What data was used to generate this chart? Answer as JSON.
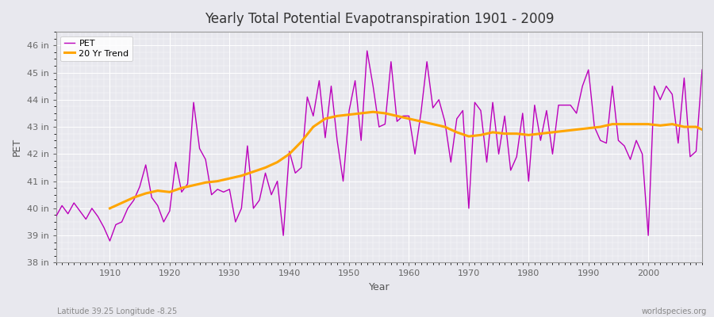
{
  "title": "Yearly Total Potential Evapotranspiration 1901 - 2009",
  "xlabel": "Year",
  "ylabel": "PET",
  "footnote_left": "Latitude 39.25 Longitude -8.25",
  "footnote_right": "worldspecies.org",
  "pet_color": "#BB00BB",
  "trend_color": "#FFA500",
  "bg_color": "#E8E8EE",
  "ylim": [
    38,
    46.5
  ],
  "xlim": [
    1901,
    2009
  ],
  "ytick_labels": [
    "38 in",
    "39 in",
    "40 in",
    "41 in",
    "42 in",
    "43 in",
    "44 in",
    "45 in",
    "46 in"
  ],
  "ytick_values": [
    38,
    39,
    40,
    41,
    42,
    43,
    44,
    45,
    46
  ],
  "years": [
    1901,
    1902,
    1903,
    1904,
    1905,
    1906,
    1907,
    1908,
    1909,
    1910,
    1911,
    1912,
    1913,
    1914,
    1915,
    1916,
    1917,
    1918,
    1919,
    1920,
    1921,
    1922,
    1923,
    1924,
    1925,
    1926,
    1927,
    1928,
    1929,
    1930,
    1931,
    1932,
    1933,
    1934,
    1935,
    1936,
    1937,
    1938,
    1939,
    1940,
    1941,
    1942,
    1943,
    1944,
    1945,
    1946,
    1947,
    1948,
    1949,
    1950,
    1951,
    1952,
    1953,
    1954,
    1955,
    1956,
    1957,
    1958,
    1959,
    1960,
    1961,
    1962,
    1963,
    1964,
    1965,
    1966,
    1967,
    1968,
    1969,
    1970,
    1971,
    1972,
    1973,
    1974,
    1975,
    1976,
    1977,
    1978,
    1979,
    1980,
    1981,
    1982,
    1983,
    1984,
    1985,
    1986,
    1987,
    1988,
    1989,
    1990,
    1991,
    1992,
    1993,
    1994,
    1995,
    1996,
    1997,
    1998,
    1999,
    2000,
    2001,
    2002,
    2003,
    2004,
    2005,
    2006,
    2007,
    2008,
    2009
  ],
  "pet_values": [
    39.7,
    40.1,
    39.8,
    40.2,
    39.9,
    39.6,
    40.0,
    39.7,
    39.3,
    38.8,
    39.4,
    39.5,
    40.0,
    40.3,
    40.8,
    41.6,
    40.4,
    40.1,
    39.5,
    39.9,
    41.7,
    40.6,
    40.9,
    43.9,
    42.2,
    41.8,
    40.5,
    40.7,
    40.6,
    40.7,
    39.5,
    40.0,
    42.3,
    40.0,
    40.3,
    41.3,
    40.5,
    41.0,
    39.0,
    42.1,
    41.3,
    41.5,
    44.1,
    43.4,
    44.7,
    42.6,
    44.5,
    42.5,
    41.0,
    43.6,
    44.7,
    42.5,
    45.8,
    44.5,
    43.0,
    43.1,
    45.4,
    43.2,
    43.4,
    43.4,
    42.0,
    43.5,
    45.4,
    43.7,
    44.0,
    43.2,
    41.7,
    43.3,
    43.6,
    40.0,
    43.9,
    43.6,
    41.7,
    43.9,
    42.0,
    43.4,
    41.4,
    41.9,
    43.5,
    41.0,
    43.8,
    42.5,
    43.6,
    42.0,
    43.8,
    43.8,
    43.8,
    43.5,
    44.5,
    45.1,
    43.0,
    42.5,
    42.4,
    44.5,
    42.5,
    42.3,
    41.8,
    42.5,
    42.0,
    39.0,
    44.5,
    44.0,
    44.5,
    44.2,
    42.4,
    44.8,
    41.9,
    42.1,
    45.1
  ],
  "trend_years": [
    1910,
    1912,
    1914,
    1916,
    1918,
    1920,
    1922,
    1924,
    1926,
    1928,
    1930,
    1932,
    1934,
    1936,
    1938,
    1940,
    1942,
    1944,
    1946,
    1948,
    1950,
    1952,
    1954,
    1956,
    1958,
    1960,
    1962,
    1964,
    1966,
    1968,
    1970,
    1972,
    1974,
    1976,
    1978,
    1980,
    1982,
    1984,
    1986,
    1988,
    1990,
    1992,
    1994,
    1996,
    1998,
    2000,
    2002,
    2004,
    2006,
    2008,
    2009
  ],
  "trend_values": [
    40.0,
    40.2,
    40.4,
    40.55,
    40.65,
    40.6,
    40.75,
    40.85,
    40.95,
    41.0,
    41.1,
    41.2,
    41.35,
    41.5,
    41.7,
    42.0,
    42.45,
    43.0,
    43.3,
    43.4,
    43.45,
    43.5,
    43.55,
    43.5,
    43.4,
    43.3,
    43.2,
    43.1,
    43.0,
    42.8,
    42.65,
    42.7,
    42.8,
    42.75,
    42.75,
    42.7,
    42.75,
    42.8,
    42.85,
    42.9,
    42.95,
    43.0,
    43.1,
    43.1,
    43.1,
    43.1,
    43.05,
    43.1,
    43.0,
    43.0,
    42.9
  ]
}
